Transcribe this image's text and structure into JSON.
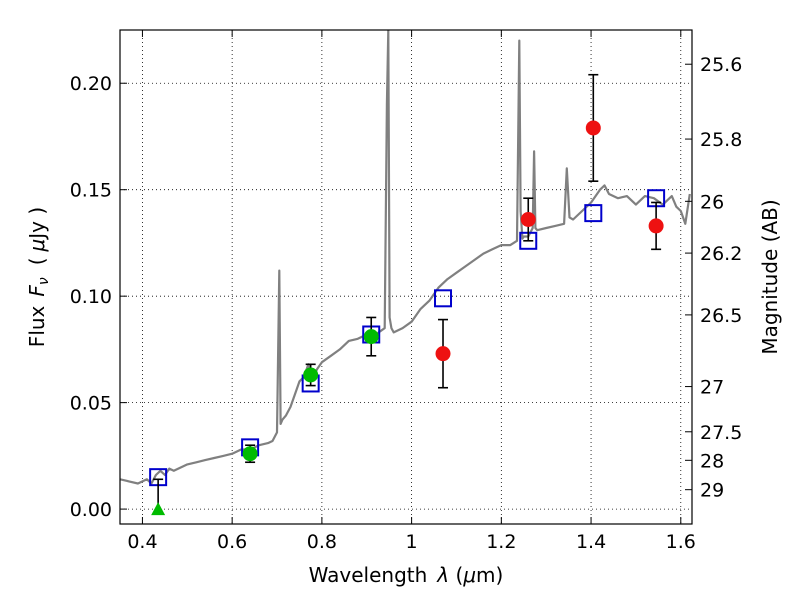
{
  "chart_data": {
    "type": "scatter",
    "title": "",
    "xlabel": "Wavelength",
    "xlabel_symbol": "λ",
    "xlabel_unit_open": " (",
    "xlabel_unit_mu": "μ",
    "xlabel_unit_rest": "m)",
    "ylabel": "Flux",
    "ylabel_symbol": "F",
    "ylabel_symbol_sub": "ν",
    "ylabel_unit_open": "(",
    "ylabel_unit_mu": "μ",
    "ylabel_unit_rest": "Jy )",
    "y2label": "Magnitude (AB)",
    "xlim": [
      0.35,
      1.625
    ],
    "ylim": [
      -0.007,
      0.225
    ],
    "grid": true,
    "x_ticks": [
      0.4,
      0.6,
      0.8,
      1.0,
      1.2,
      1.4,
      1.6
    ],
    "x_tick_labels": [
      "0.4",
      "0.6",
      "0.8",
      "1",
      "1.2",
      "1.4",
      "1.6"
    ],
    "y_ticks": [
      0.0,
      0.05,
      0.1,
      0.15,
      0.2
    ],
    "y_tick_labels": [
      "0.00",
      "0.05",
      "0.10",
      "0.15",
      "0.20"
    ],
    "y2_ticks": [
      {
        "label": "25.6",
        "mag": 25.6
      },
      {
        "label": "25.8",
        "mag": 25.8
      },
      {
        "label": "26",
        "mag": 26.0
      },
      {
        "label": "26.2",
        "mag": 26.2
      },
      {
        "label": "26.5",
        "mag": 26.5
      },
      {
        "label": "27",
        "mag": 27.0
      },
      {
        "label": "27.5",
        "mag": 27.5
      },
      {
        "label": "28",
        "mag": 28.0
      },
      {
        "label": "29",
        "mag": 29.0
      }
    ],
    "spectrum": {
      "color": "#808080",
      "x": [
        0.35,
        0.37,
        0.39,
        0.41,
        0.42,
        0.43,
        0.44,
        0.45,
        0.46,
        0.47,
        0.48,
        0.5,
        0.52,
        0.54,
        0.56,
        0.58,
        0.6,
        0.62,
        0.64,
        0.66,
        0.68,
        0.69,
        0.7,
        0.705,
        0.708,
        0.712,
        0.72,
        0.73,
        0.74,
        0.75,
        0.76,
        0.77,
        0.78,
        0.79,
        0.8,
        0.82,
        0.84,
        0.86,
        0.88,
        0.9,
        0.92,
        0.94,
        0.945,
        0.948,
        0.951,
        0.955,
        0.96,
        0.98,
        1.0,
        1.02,
        1.04,
        1.06,
        1.08,
        1.1,
        1.12,
        1.14,
        1.16,
        1.18,
        1.2,
        1.22,
        1.235,
        1.24,
        1.243,
        1.247,
        1.25,
        1.26,
        1.27,
        1.273,
        1.276,
        1.28,
        1.3,
        1.32,
        1.34,
        1.346,
        1.352,
        1.36,
        1.38,
        1.4,
        1.42,
        1.43,
        1.44,
        1.46,
        1.48,
        1.5,
        1.52,
        1.54,
        1.56,
        1.58,
        1.59,
        1.6,
        1.61,
        1.62
      ],
      "y": [
        0.014,
        0.013,
        0.012,
        0.014,
        0.012,
        0.016,
        0.018,
        0.016,
        0.019,
        0.018,
        0.019,
        0.021,
        0.022,
        0.023,
        0.024,
        0.025,
        0.026,
        0.028,
        0.028,
        0.03,
        0.031,
        0.032,
        0.036,
        0.112,
        0.04,
        0.042,
        0.044,
        0.048,
        0.054,
        0.06,
        0.062,
        0.068,
        0.062,
        0.066,
        0.069,
        0.072,
        0.075,
        0.079,
        0.08,
        0.082,
        0.082,
        0.085,
        0.19,
        0.225,
        0.09,
        0.085,
        0.083,
        0.085,
        0.088,
        0.094,
        0.098,
        0.104,
        0.108,
        0.111,
        0.114,
        0.117,
        0.12,
        0.122,
        0.124,
        0.124,
        0.126,
        0.22,
        0.14,
        0.127,
        0.128,
        0.128,
        0.132,
        0.168,
        0.132,
        0.131,
        0.132,
        0.133,
        0.134,
        0.16,
        0.137,
        0.136,
        0.14,
        0.144,
        0.15,
        0.152,
        0.148,
        0.146,
        0.147,
        0.143,
        0.147,
        0.146,
        0.143,
        0.147,
        0.142,
        0.14,
        0.134,
        0.148
      ]
    },
    "series": [
      {
        "marker": "square-open",
        "color": "#0000cc",
        "x": [
          0.435,
          0.64,
          0.775,
          0.91,
          1.07,
          1.26,
          1.405,
          1.545
        ],
        "y": [
          0.015,
          0.029,
          0.059,
          0.082,
          0.099,
          0.126,
          0.139,
          0.146
        ]
      },
      {
        "marker": "circle",
        "color": "#00bb00",
        "x": [
          0.64,
          0.775,
          0.91
        ],
        "y": [
          0.026,
          0.063,
          0.081
        ],
        "yerr": [
          0.004,
          0.005,
          0.009
        ]
      },
      {
        "marker": "circle",
        "color": "#ee1111",
        "x": [
          1.07,
          1.26,
          1.405,
          1.545
        ],
        "y": [
          0.073,
          0.136,
          0.179,
          0.133
        ],
        "yerr": [
          0.016,
          0.01,
          0.025,
          0.011
        ]
      },
      {
        "marker": "triangle-up",
        "color": "#00bb00",
        "x": [
          0.435
        ],
        "y": [
          0.0
        ],
        "yerr_up": [
          0.014
        ]
      }
    ]
  }
}
